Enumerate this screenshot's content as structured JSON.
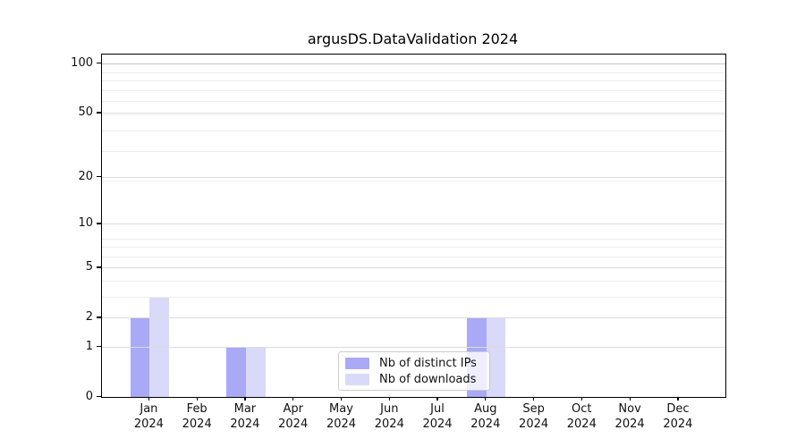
{
  "chart_data": {
    "type": "bar",
    "title": "argusDS.DataValidation 2024",
    "categories": [
      "Jan",
      "Feb",
      "Mar",
      "Apr",
      "May",
      "Jun",
      "Jul",
      "Aug",
      "Sep",
      "Oct",
      "Nov",
      "Dec"
    ],
    "category_year": "2024",
    "series": [
      {
        "name": "Nb of distinct IPs",
        "color": "#a9a9f5",
        "values": [
          2,
          0,
          1,
          0,
          0,
          0,
          0,
          2,
          0,
          0,
          0,
          0
        ]
      },
      {
        "name": "Nb of downloads",
        "color": "#d9d9fa",
        "values": [
          3,
          0,
          1,
          0,
          0,
          0,
          0,
          2,
          0,
          0,
          0,
          0
        ]
      }
    ],
    "xlabel": "",
    "ylabel": "",
    "yscale": "log1p",
    "yticks": [
      0,
      1,
      2,
      5,
      10,
      20,
      50,
      100
    ],
    "minor_gridlines_1plusv": [
      2,
      3,
      4,
      5,
      6,
      7,
      8,
      9,
      20,
      30,
      40,
      50,
      60,
      70,
      80,
      90
    ],
    "ylim": [
      0,
      114
    ],
    "grid": "horizontal major and minor, drawn above bars",
    "legend_position": "lower center",
    "colors": {
      "axis": "#000000",
      "grid_major": "#dcdcdc",
      "grid_minor": "#ededed",
      "grid_top": "#c6c6c6",
      "tick_text": "#111111"
    }
  }
}
